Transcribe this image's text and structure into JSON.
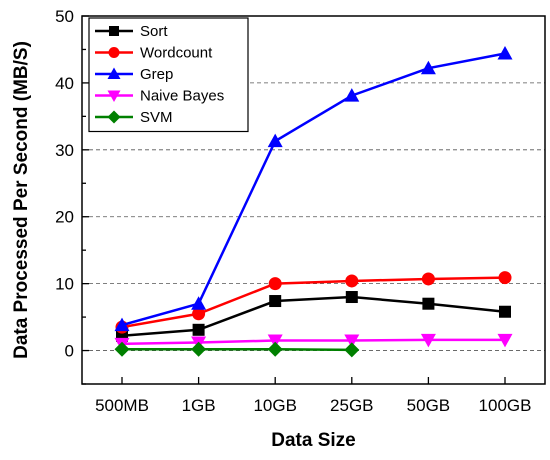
{
  "chart_data": {
    "type": "line",
    "xlabel": "Data Size",
    "ylabel": "Data Processed Per Second (MB/S)",
    "categories": [
      "500MB",
      "1GB",
      "10GB",
      "25GB",
      "50GB",
      "100GB"
    ],
    "ylim": [
      -5,
      50
    ],
    "yticks": [
      0,
      10,
      20,
      30,
      40,
      50
    ],
    "grid": "horizontal-dashed",
    "legend_position": "top-left",
    "series": [
      {
        "name": "Sort",
        "color": "#000000",
        "marker": "square",
        "values": [
          2.2,
          3.1,
          7.4,
          8.0,
          7.0,
          5.8
        ]
      },
      {
        "name": "Wordcount",
        "color": "#ff0000",
        "marker": "circle",
        "values": [
          3.5,
          5.5,
          10.0,
          10.4,
          10.7,
          10.9
        ]
      },
      {
        "name": "Grep",
        "color": "#0000ff",
        "marker": "triangle-up",
        "values": [
          3.8,
          7.0,
          31.3,
          38.1,
          42.2,
          44.4
        ]
      },
      {
        "name": "Naive Bayes",
        "color": "#ff00ff",
        "marker": "triangle-down",
        "values": [
          1.0,
          1.2,
          1.5,
          1.5,
          1.6,
          1.6
        ]
      },
      {
        "name": "SVM",
        "color": "#008000",
        "marker": "diamond",
        "values": [
          0.2,
          0.2,
          0.2,
          0.1,
          null,
          null
        ]
      }
    ]
  }
}
